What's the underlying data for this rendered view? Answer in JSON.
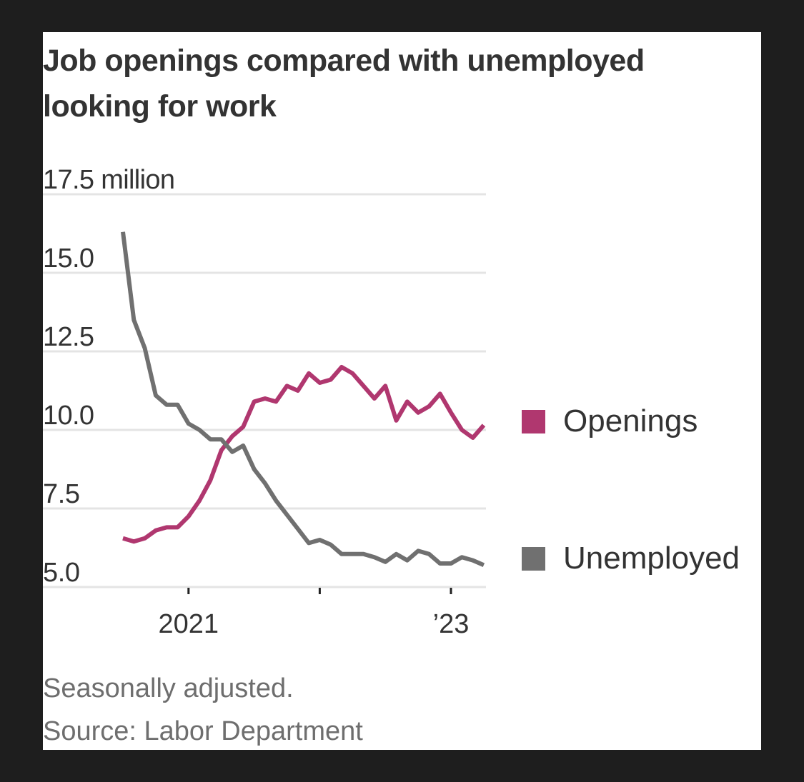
{
  "chart_data": {
    "type": "line",
    "title": "Job openings compared with unemployed looking for work",
    "ylabel": "million",
    "ylim": [
      5.0,
      17.5
    ],
    "yticks": [
      5.0,
      7.5,
      10.0,
      12.5,
      15.0,
      17.5
    ],
    "ytick_labels": [
      "5.0",
      "7.5",
      "10.0",
      "12.5",
      "15.0",
      "17.5 million"
    ],
    "xticks": [
      {
        "label": "2021",
        "month_index": 6
      },
      {
        "label": "",
        "month_index": 18
      },
      {
        "label": "’23",
        "month_index": 30
      }
    ],
    "x_start": "Jul 2020",
    "x_end": "Apr 2023",
    "grid": true,
    "legend_placement": "right",
    "series": [
      {
        "name": "Openings",
        "color": "#b0376f",
        "values": [
          6.55,
          6.45,
          6.55,
          6.8,
          6.9,
          6.9,
          7.25,
          7.75,
          8.4,
          9.35,
          9.8,
          10.1,
          10.9,
          11.0,
          10.9,
          11.4,
          11.25,
          11.8,
          11.5,
          11.6,
          12.0,
          11.8,
          11.4,
          11.0,
          11.4,
          10.3,
          10.9,
          10.55,
          10.75,
          11.15,
          10.55,
          10.0,
          9.75,
          10.15
        ]
      },
      {
        "name": "Unemployed",
        "color": "#707070",
        "values": [
          16.3,
          13.5,
          12.6,
          11.1,
          10.8,
          10.8,
          10.2,
          10.0,
          9.7,
          9.7,
          9.3,
          9.5,
          8.75,
          8.3,
          7.75,
          7.3,
          6.85,
          6.4,
          6.5,
          6.35,
          6.05,
          6.05,
          6.05,
          5.95,
          5.8,
          6.05,
          5.85,
          6.15,
          6.05,
          5.75,
          5.75,
          5.95,
          5.85,
          5.7
        ]
      }
    ],
    "notes": [
      "Seasonally adjusted.",
      "Source: Labor Department"
    ]
  }
}
